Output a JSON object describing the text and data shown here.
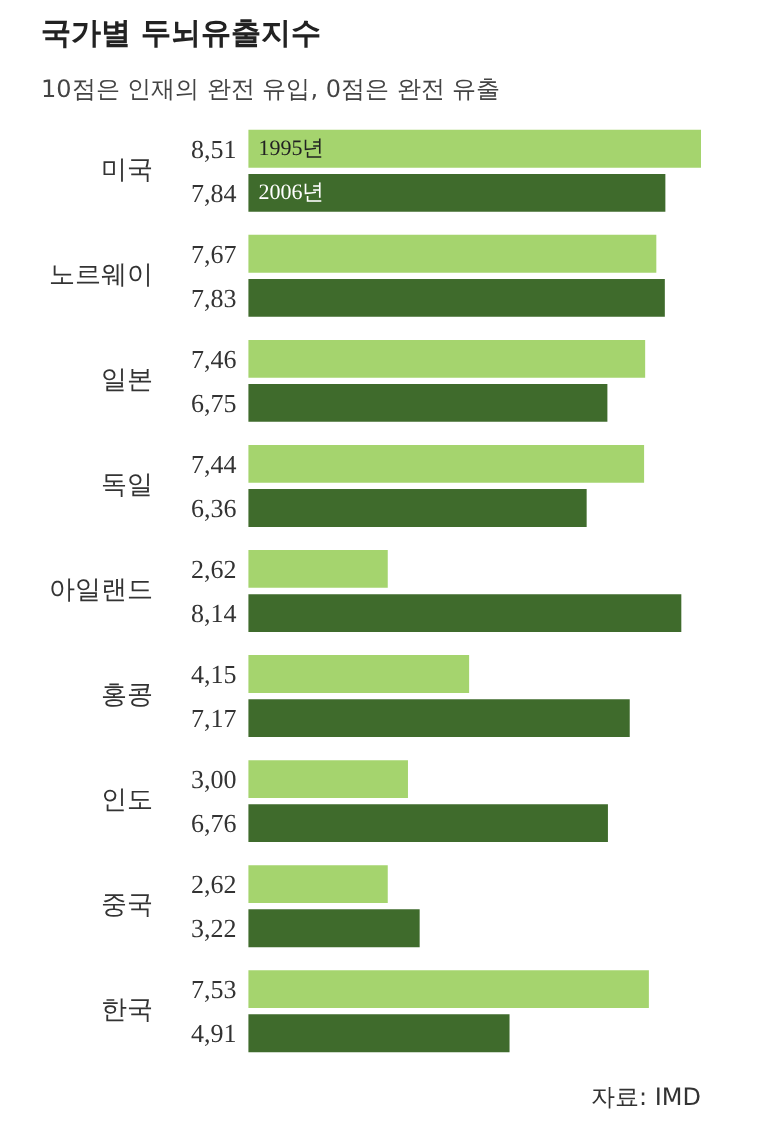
{
  "chart_data": {
    "type": "bar",
    "orientation": "horizontal",
    "title": "국가별 두뇌유출지수",
    "subtitle": "10점은 인재의 완전 유입, 0점은 완전 유출",
    "categories": [
      "미국",
      "노르웨이",
      "일본",
      "독일",
      "아일랜드",
      "홍콩",
      "인도",
      "중국",
      "한국"
    ],
    "series": [
      {
        "name": "1995년",
        "color": "#a5d46e",
        "values": [
          8.51,
          7.67,
          7.46,
          7.44,
          2.62,
          4.15,
          3.0,
          2.62,
          7.53
        ],
        "value_labels": [
          "8,51",
          "7,67",
          "7,46",
          "7,44",
          "2,62",
          "4,15",
          "3,00",
          "2,62",
          "7,53"
        ]
      },
      {
        "name": "2006년",
        "color": "#3f6b2c",
        "values": [
          7.84,
          7.83,
          6.75,
          6.36,
          8.14,
          7.17,
          6.76,
          3.22,
          4.91
        ],
        "value_labels": [
          "7,84",
          "7,83",
          "6,75",
          "6,36",
          "8,14",
          "7,17",
          "6,76",
          "3,22",
          "4,91"
        ]
      }
    ],
    "tick_labels": false,
    "grid": false,
    "annotations": [
      "자료: IMD"
    ]
  }
}
